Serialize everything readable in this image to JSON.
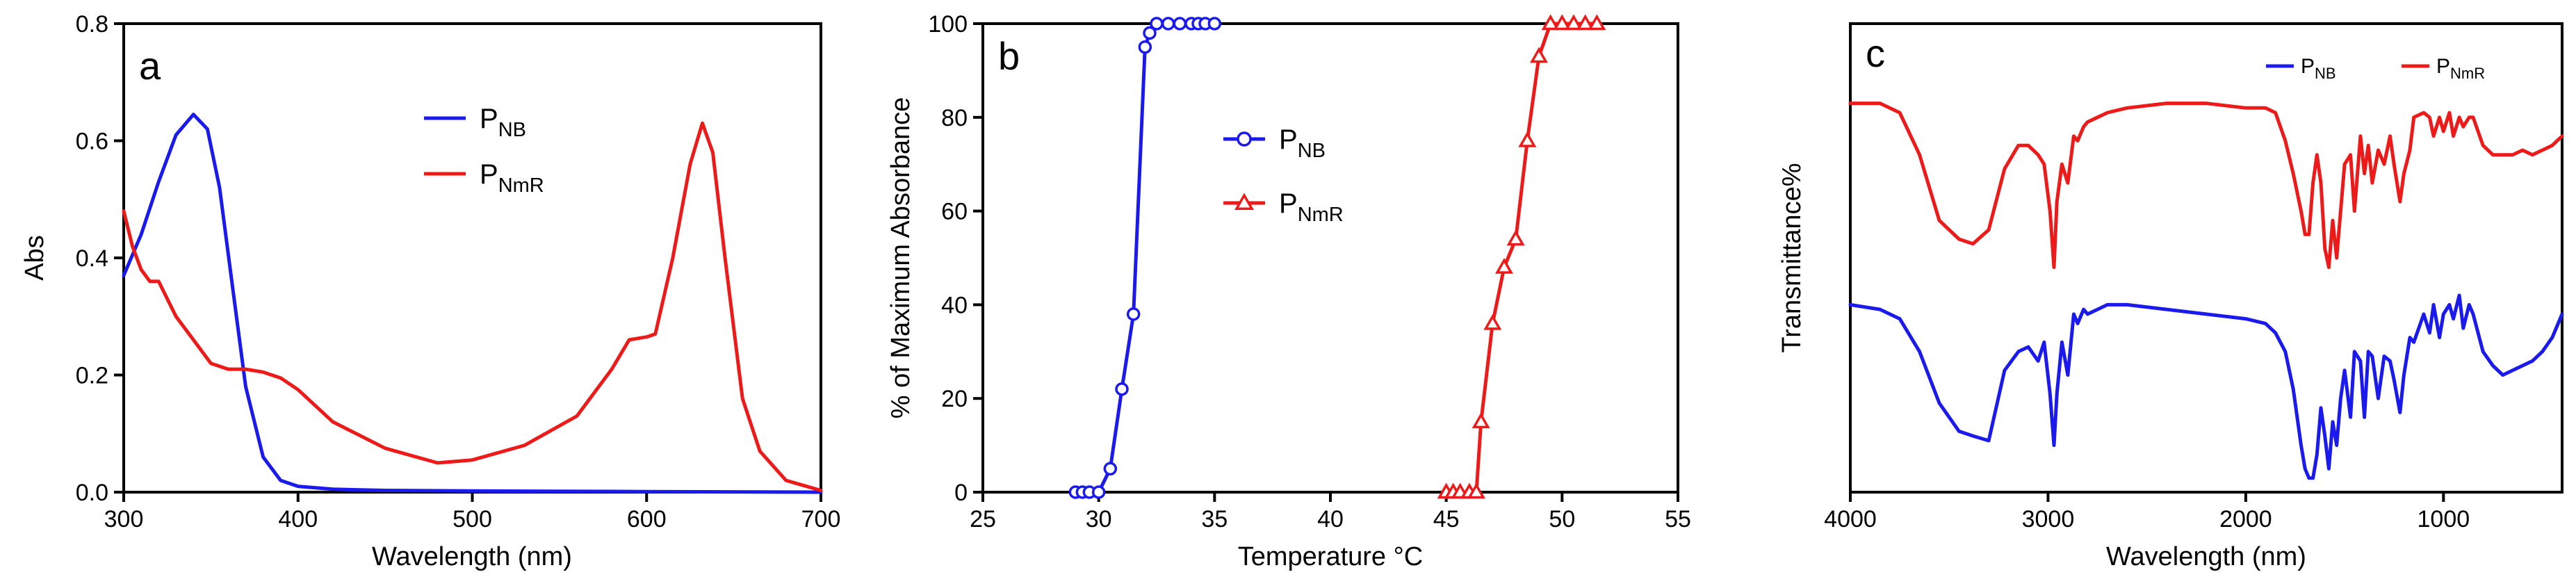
{
  "figure_title": "",
  "colors": {
    "blue": "#1a1aee",
    "red": "#ee1a1a",
    "axis": "#000000"
  },
  "chart_data": [
    {
      "panel": "a",
      "type": "line",
      "xlabel": "Wavelength (nm)",
      "ylabel": "Abs",
      "xlim": [
        300,
        700
      ],
      "ylim": [
        0,
        0.8
      ],
      "xticks": [
        300,
        400,
        500,
        600,
        700
      ],
      "yticks": [
        0.0,
        0.2,
        0.4,
        0.6,
        0.8
      ],
      "ytick_labels": [
        "0.0",
        "0.2",
        "0.4",
        "0.6",
        "0.8"
      ],
      "grid": false,
      "legend_position": "top-center",
      "series": [
        {
          "name": "PNB",
          "base": "P",
          "sub": "NB",
          "color": "#1a1aee",
          "x": [
            300,
            310,
            320,
            330,
            340,
            348,
            355,
            362,
            370,
            380,
            390,
            400,
            420,
            450,
            500,
            600,
            700
          ],
          "y": [
            0.37,
            0.44,
            0.53,
            0.61,
            0.645,
            0.62,
            0.52,
            0.36,
            0.18,
            0.06,
            0.02,
            0.01,
            0.005,
            0.003,
            0.002,
            0.001,
            0.0
          ]
        },
        {
          "name": "PNmR",
          "base": "P",
          "sub": "NmR",
          "color": "#ee1a1a",
          "x": [
            300,
            305,
            310,
            315,
            320,
            325,
            330,
            340,
            350,
            360,
            370,
            380,
            390,
            400,
            420,
            450,
            480,
            500,
            530,
            560,
            580,
            590,
            600,
            605,
            615,
            625,
            632,
            638,
            645,
            655,
            665,
            680,
            700
          ],
          "y": [
            0.48,
            0.42,
            0.38,
            0.36,
            0.36,
            0.33,
            0.3,
            0.26,
            0.22,
            0.21,
            0.21,
            0.205,
            0.195,
            0.175,
            0.12,
            0.075,
            0.05,
            0.055,
            0.08,
            0.13,
            0.21,
            0.26,
            0.265,
            0.27,
            0.4,
            0.56,
            0.63,
            0.58,
            0.4,
            0.16,
            0.07,
            0.02,
            0.003
          ]
        }
      ]
    },
    {
      "panel": "b",
      "type": "line",
      "xlabel": "Temperature °C",
      "ylabel": "% of Maximum Absorbance",
      "xlim": [
        25,
        55
      ],
      "ylim": [
        0,
        100
      ],
      "xticks": [
        25,
        30,
        35,
        40,
        45,
        50,
        55
      ],
      "yticks": [
        0,
        20,
        40,
        60,
        80,
        100
      ],
      "grid": false,
      "legend_position": "left-middle",
      "series": [
        {
          "name": "PNB",
          "base": "P",
          "sub": "NB",
          "color": "#1a1aee",
          "marker": "circle",
          "x": [
            29.0,
            29.3,
            29.6,
            30.0,
            30.5,
            31.0,
            31.5,
            32.0,
            32.2,
            32.5,
            33.0,
            33.5,
            34.0,
            34.3,
            34.6,
            35.0
          ],
          "y": [
            0,
            0,
            0,
            0,
            5,
            22,
            38,
            95,
            98,
            100,
            100,
            100,
            100,
            100,
            100,
            100
          ]
        },
        {
          "name": "PNmR",
          "base": "P",
          "sub": "NmR",
          "color": "#ee1a1a",
          "marker": "triangle",
          "x": [
            45.0,
            45.3,
            45.6,
            46.0,
            46.3,
            46.5,
            47.0,
            47.5,
            48.0,
            48.5,
            49.0,
            49.5,
            50.0,
            50.5,
            51.0,
            51.5
          ],
          "y": [
            0,
            0,
            0,
            0,
            0,
            15,
            36,
            48,
            54,
            75,
            93,
            100,
            100,
            100,
            100,
            100
          ]
        }
      ]
    },
    {
      "panel": "c",
      "type": "line",
      "xlabel": "Wavelength (nm)",
      "ylabel": "Transmittance%",
      "xlim": [
        4000,
        400
      ],
      "ylim": [
        0,
        100
      ],
      "xticks": [
        4000,
        3000,
        2000,
        1000
      ],
      "yticks": [],
      "grid": false,
      "legend_position": "top-right",
      "series": [
        {
          "name": "PNB",
          "base": "P",
          "sub": "NB",
          "color": "#1a1aee",
          "x": [
            4000,
            3850,
            3750,
            3650,
            3550,
            3450,
            3380,
            3300,
            3220,
            3150,
            3100,
            3050,
            3020,
            2990,
            2970,
            2955,
            2930,
            2900,
            2870,
            2850,
            2820,
            2800,
            2750,
            2700,
            2600,
            2400,
            2200,
            2000,
            1900,
            1850,
            1800,
            1760,
            1720,
            1700,
            1680,
            1660,
            1640,
            1620,
            1600,
            1580,
            1560,
            1540,
            1520,
            1500,
            1470,
            1450,
            1420,
            1400,
            1380,
            1360,
            1330,
            1300,
            1270,
            1250,
            1220,
            1200,
            1170,
            1150,
            1100,
            1070,
            1050,
            1020,
            1000,
            970,
            950,
            920,
            900,
            870,
            850,
            800,
            750,
            700,
            650,
            600,
            550,
            500,
            450,
            400
          ],
          "y": [
            40,
            39,
            37,
            30,
            19,
            13,
            12,
            11,
            26,
            30,
            31,
            28,
            32,
            21,
            10,
            21,
            32,
            25,
            38,
            36,
            39,
            38,
            39,
            40,
            40,
            39,
            38,
            37,
            36,
            34,
            30,
            22,
            10,
            5,
            3,
            3,
            8,
            18,
            12,
            5,
            15,
            10,
            20,
            26,
            16,
            30,
            28,
            16,
            30,
            29,
            20,
            29,
            28,
            24,
            17,
            25,
            33,
            32,
            38,
            34,
            40,
            33,
            38,
            40,
            37,
            42,
            35,
            40,
            38,
            30,
            27,
            25,
            26,
            27,
            28,
            30,
            33,
            38
          ]
        },
        {
          "name": "PNmR",
          "base": "P",
          "sub": "NmR",
          "color": "#ee1a1a",
          "x": [
            4000,
            3850,
            3750,
            3650,
            3550,
            3450,
            3380,
            3300,
            3220,
            3150,
            3100,
            3050,
            3020,
            2990,
            2970,
            2955,
            2930,
            2900,
            2870,
            2850,
            2820,
            2800,
            2750,
            2700,
            2600,
            2400,
            2200,
            2000,
            1900,
            1850,
            1800,
            1760,
            1720,
            1700,
            1680,
            1660,
            1640,
            1620,
            1600,
            1580,
            1560,
            1540,
            1520,
            1500,
            1470,
            1450,
            1420,
            1400,
            1380,
            1360,
            1330,
            1300,
            1270,
            1250,
            1220,
            1200,
            1170,
            1150,
            1100,
            1070,
            1050,
            1020,
            1000,
            970,
            950,
            920,
            900,
            870,
            850,
            800,
            750,
            700,
            650,
            600,
            550,
            500,
            450,
            400
          ],
          "y": [
            83,
            83,
            81,
            72,
            58,
            54,
            53,
            56,
            69,
            74,
            74,
            72,
            70,
            60,
            48,
            62,
            70,
            66,
            76,
            75,
            78,
            79,
            80,
            81,
            82,
            83,
            83,
            82,
            82,
            81,
            75,
            68,
            60,
            55,
            55,
            66,
            72,
            66,
            52,
            48,
            58,
            50,
            60,
            70,
            72,
            60,
            76,
            68,
            74,
            66,
            73,
            70,
            76,
            70,
            62,
            68,
            73,
            80,
            81,
            80,
            76,
            80,
            77,
            81,
            76,
            80,
            78,
            80,
            80,
            74,
            72,
            72,
            72,
            73,
            72,
            73,
            74,
            76
          ]
        }
      ]
    }
  ],
  "panels_meta": [
    {
      "letter": "a"
    },
    {
      "letter": "b"
    },
    {
      "letter": "c"
    }
  ]
}
